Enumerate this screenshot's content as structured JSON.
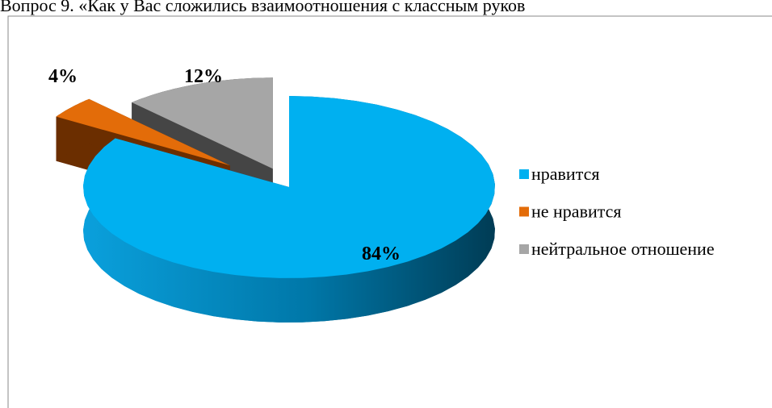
{
  "chart_data": {
    "type": "pie3d",
    "title": "Вопрос 9. «Как у Вас сложились взаимоотношения с классным руков",
    "categories": [
      "нравится",
      "не нравится",
      "нейтральное отношение"
    ],
    "values": [
      84,
      4,
      12
    ],
    "value_labels": [
      "84%",
      "4%",
      "12%"
    ],
    "colors": [
      "#00b0f0",
      "#e36c09",
      "#a6a6a6"
    ],
    "legend": "right"
  }
}
